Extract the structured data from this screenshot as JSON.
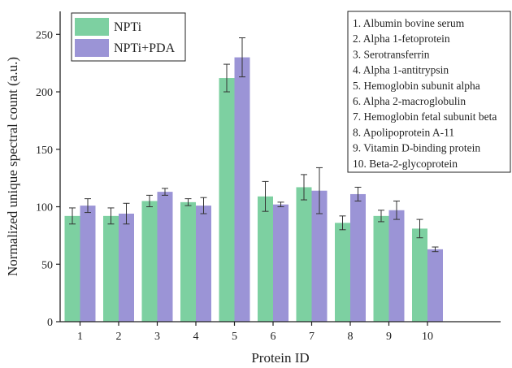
{
  "chart_data": {
    "type": "bar",
    "xlabel": "Protein ID",
    "ylabel": "Normalized unique spectral count (a.u.)",
    "categories": [
      "1",
      "2",
      "3",
      "4",
      "5",
      "6",
      "7",
      "8",
      "9",
      "10"
    ],
    "ylim": [
      0,
      270
    ],
    "yticks": [
      0,
      50,
      100,
      150,
      200,
      250
    ],
    "grid": false,
    "legend": "top-left",
    "series": [
      {
        "name": "NPTi",
        "color": "#7dd0a1",
        "values": [
          92,
          92,
          105,
          104,
          212,
          109,
          117,
          86,
          92,
          81
        ],
        "errors": [
          7,
          7,
          5,
          3,
          12,
          13,
          11,
          6,
          5,
          8
        ]
      },
      {
        "name": "NPTi+PDA",
        "color": "#9b94d6",
        "values": [
          101,
          94,
          113,
          101,
          230,
          102,
          114,
          111,
          97,
          63
        ],
        "errors": [
          6,
          9,
          3,
          7,
          17,
          2,
          20,
          6,
          8,
          2
        ]
      }
    ],
    "annotation_lines": [
      "1. Albumin bovine serum",
      "2. Alpha 1-fetoprotein",
      "3. Serotransferrin",
      "4. Alpha 1-antitrypsin",
      "5. Hemoglobin subunit alpha",
      "6. Alpha 2-macroglobulin",
      "7. Hemoglobin fetal subunit beta",
      "8. Apolipoprotein A-11",
      "9. Vitamin D-binding protein",
      "10. Beta-2-glycoprotein"
    ]
  }
}
